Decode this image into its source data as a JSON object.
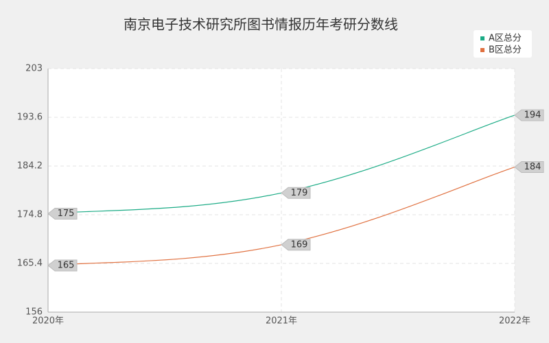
{
  "chart_data": {
    "type": "line",
    "title": "南京电子技术研究所图书情报历年考研分数线",
    "categories": [
      "2020年",
      "2021年",
      "2022年"
    ],
    "series": [
      {
        "name": "A区总分",
        "color": "#1aab85",
        "values": [
          175,
          179,
          194
        ]
      },
      {
        "name": "B区总分",
        "color": "#e0703f",
        "values": [
          165,
          169,
          184
        ]
      }
    ],
    "ylim": [
      156,
      203
    ],
    "yticks": [
      156,
      165.4,
      174.8,
      184.2,
      193.6,
      203
    ],
    "grid": true
  }
}
